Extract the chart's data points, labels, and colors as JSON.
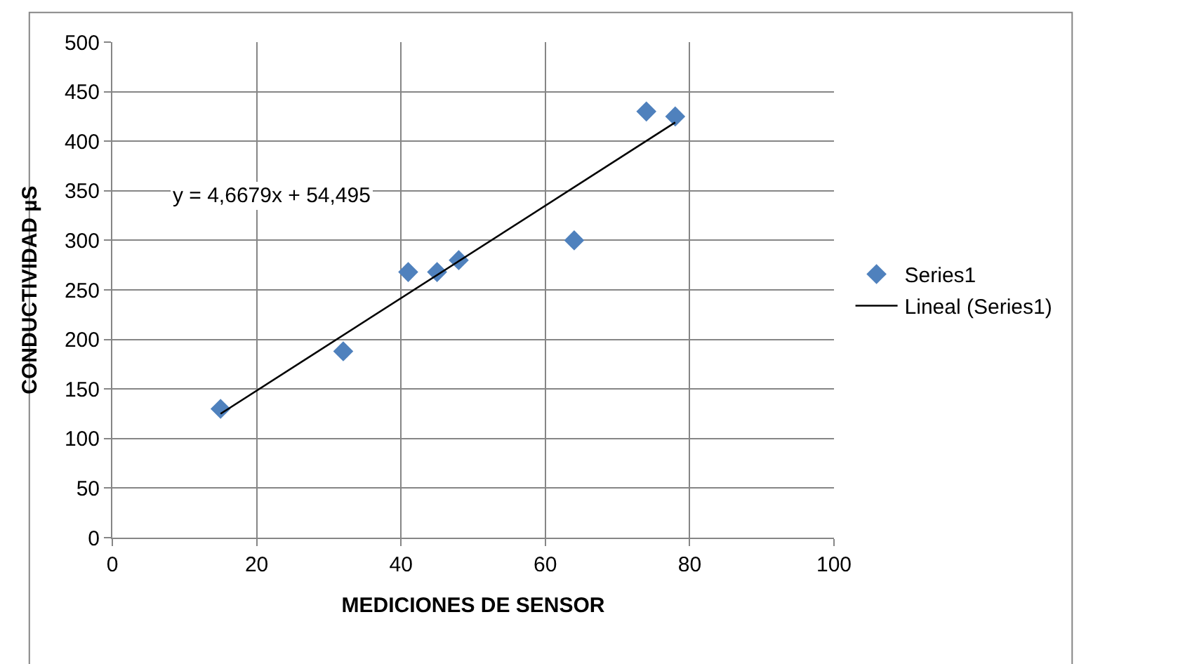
{
  "chart_data": {
    "type": "scatter",
    "xlabel": "MEDICIONES DE SENSOR",
    "ylabel": "CONDUCTIVIDAD µS",
    "annotations": [
      "y = 4,6679x + 54,495"
    ],
    "x": [
      15,
      32,
      41,
      45,
      48,
      64,
      74,
      78
    ],
    "series": [
      {
        "name": "Series1",
        "color": "#4f81bd",
        "marker": "diamond",
        "values": [
          130,
          188,
          268,
          268,
          280,
          300,
          430,
          425
        ]
      },
      {
        "name": "Lineal (Series1)",
        "type": "line",
        "color": "#000000",
        "x": [
          15,
          78
        ],
        "values": [
          125,
          419
        ]
      }
    ],
    "xlim": [
      0,
      100
    ],
    "xticks": [
      0,
      20,
      40,
      60,
      80,
      100
    ],
    "ylim": [
      0,
      500
    ],
    "yticks": [
      0,
      50,
      100,
      150,
      200,
      250,
      300,
      350,
      400,
      450,
      500
    ],
    "grid": true,
    "legend": "right"
  }
}
